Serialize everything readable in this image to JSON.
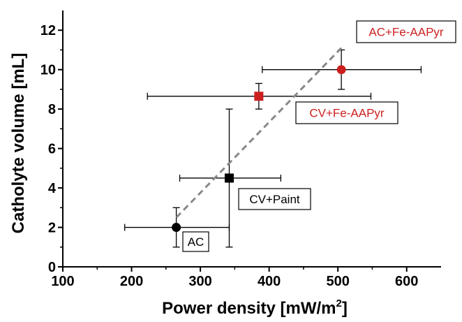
{
  "chart_data": {
    "type": "scatter",
    "xlabel": "Power density [mW/m",
    "xlabel_sup": "2",
    "xlabel_end": "]",
    "ylabel": "Catholyte volume [mL]",
    "xlim": [
      100,
      650
    ],
    "ylim": [
      0,
      13
    ],
    "x_ticks": [
      100,
      200,
      300,
      400,
      500,
      600
    ],
    "y_ticks": [
      0,
      2,
      4,
      6,
      8,
      10,
      12
    ],
    "grid": false,
    "points": [
      {
        "label": "AC",
        "x": 265,
        "y": 2.0,
        "xerr_low": 190,
        "xerr_high": 342,
        "yerr_low": 1.0,
        "yerr_high": 3.0,
        "marker": "circle",
        "color": "#000000"
      },
      {
        "label": "CV+Paint",
        "x": 342,
        "y": 4.5,
        "xerr_low": 270,
        "xerr_high": 417,
        "yerr_low": 1.0,
        "yerr_high": 8.0,
        "marker": "square",
        "color": "#000000"
      },
      {
        "label": "CV+Fe-AAPyr",
        "x": 385,
        "y": 8.65,
        "xerr_low": 223,
        "xerr_high": 548,
        "yerr_low": 8.0,
        "yerr_high": 9.3,
        "marker": "square",
        "color": "#cc1f1f"
      },
      {
        "label": "AC+Fe-AAPyr",
        "x": 505,
        "y": 10.0,
        "xerr_low": 390,
        "xerr_high": 621,
        "yerr_low": 9.0,
        "yerr_high": 11.0,
        "marker": "circle",
        "color": "#cc1f1f"
      }
    ],
    "trendline": {
      "x": [
        265,
        505
      ],
      "y": [
        2.5,
        11.1
      ],
      "style": "dashed",
      "color": "#888888"
    },
    "annotations": [
      {
        "text": "AC",
        "color": "#000000"
      },
      {
        "text": "CV+Paint",
        "color": "#000000"
      },
      {
        "text": "CV+Fe-AAPyr",
        "color": "#cc1f1f"
      },
      {
        "text": "AC+Fe-AAPyr",
        "color": "#cc1f1f"
      }
    ]
  }
}
